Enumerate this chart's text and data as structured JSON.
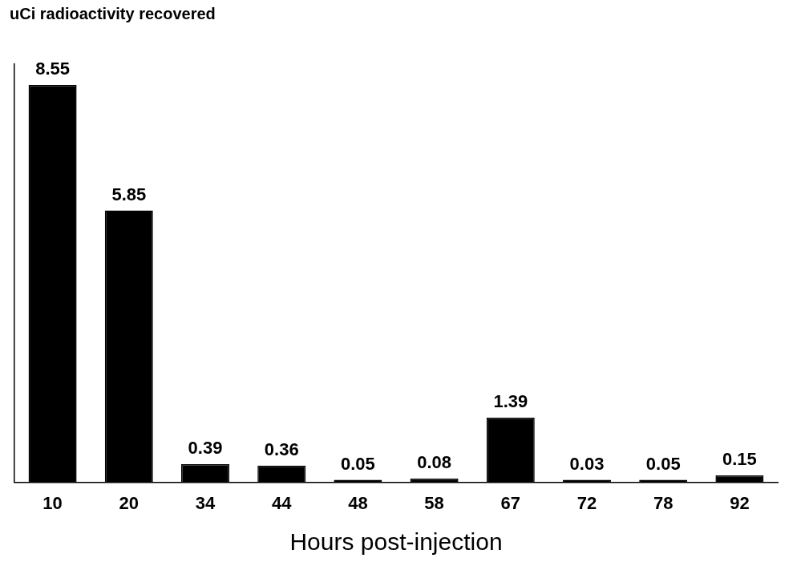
{
  "chart_data": {
    "type": "bar",
    "ylabel": "uCi radioactivity recovered",
    "xlabel": "Hours post-injection",
    "categories": [
      "10",
      "20",
      "34",
      "44",
      "48",
      "58",
      "67",
      "72",
      "78",
      "92"
    ],
    "values": [
      8.55,
      5.85,
      0.39,
      0.36,
      0.05,
      0.08,
      1.39,
      0.03,
      0.05,
      0.15
    ],
    "color": "#000000",
    "data_labels": true,
    "grid": false,
    "legend": false
  }
}
